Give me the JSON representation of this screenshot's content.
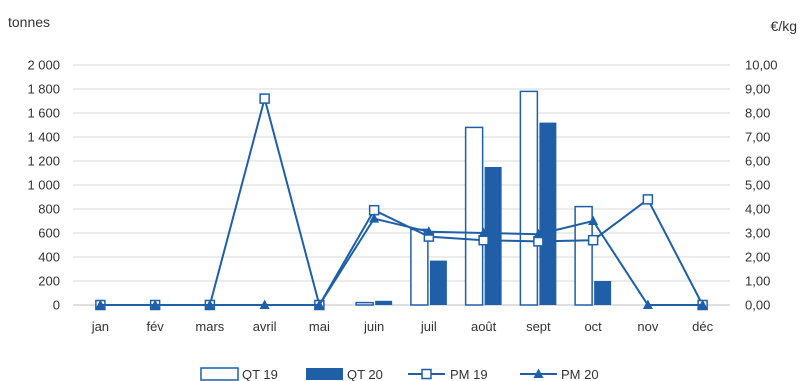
{
  "chart_data": {
    "type": "bar",
    "categories": [
      "jan",
      "fév",
      "mars",
      "avril",
      "mai",
      "juin",
      "juil",
      "août",
      "sept",
      "oct",
      "nov",
      "déc"
    ],
    "y_left": {
      "label": "tonnes",
      "ylim": [
        0,
        2000
      ],
      "ticks": [
        0,
        200,
        400,
        600,
        800,
        1000,
        1200,
        1400,
        1600,
        1800,
        2000
      ],
      "tick_labels": [
        "0",
        "200",
        "400",
        "600",
        "800",
        "1 000",
        "1 200",
        "1 400",
        "1 600",
        "1 800",
        "2 000"
      ]
    },
    "y_right": {
      "label": "€/kg",
      "ylim": [
        0,
        10
      ],
      "ticks": [
        0,
        1,
        2,
        3,
        4,
        5,
        6,
        7,
        8,
        9,
        10
      ],
      "tick_labels": [
        "0,00",
        "1,00",
        "2,00",
        "3,00",
        "4,00",
        "5,00",
        "6,00",
        "7,00",
        "8,00",
        "9,00",
        "10,00"
      ]
    },
    "series": [
      {
        "name": "QT 19",
        "kind": "bar",
        "style": "outline",
        "axis": "left",
        "values": [
          0,
          0,
          0,
          0,
          0,
          20,
          630,
          1480,
          1780,
          820,
          0,
          0
        ]
      },
      {
        "name": "QT 20",
        "kind": "bar",
        "style": "filled",
        "axis": "left",
        "values": [
          0,
          0,
          0,
          0,
          0,
          35,
          370,
          1150,
          1520,
          200,
          0,
          0
        ]
      },
      {
        "name": "PM 19",
        "kind": "line",
        "marker": "square",
        "axis": "right",
        "values": [
          0,
          0,
          0,
          8.6,
          0,
          3.95,
          2.85,
          2.7,
          2.65,
          2.7,
          4.4,
          0
        ]
      },
      {
        "name": "PM 20",
        "kind": "line",
        "marker": "triangle",
        "axis": "right",
        "values": [
          0,
          0,
          0,
          0,
          0,
          3.6,
          3.05,
          3.0,
          2.95,
          3.5,
          0,
          0
        ]
      }
    ],
    "grid": true,
    "legend": "bottom",
    "colors": {
      "main": "#1f5fa8",
      "grid": "#d9d9d9",
      "text": "#333333"
    }
  }
}
